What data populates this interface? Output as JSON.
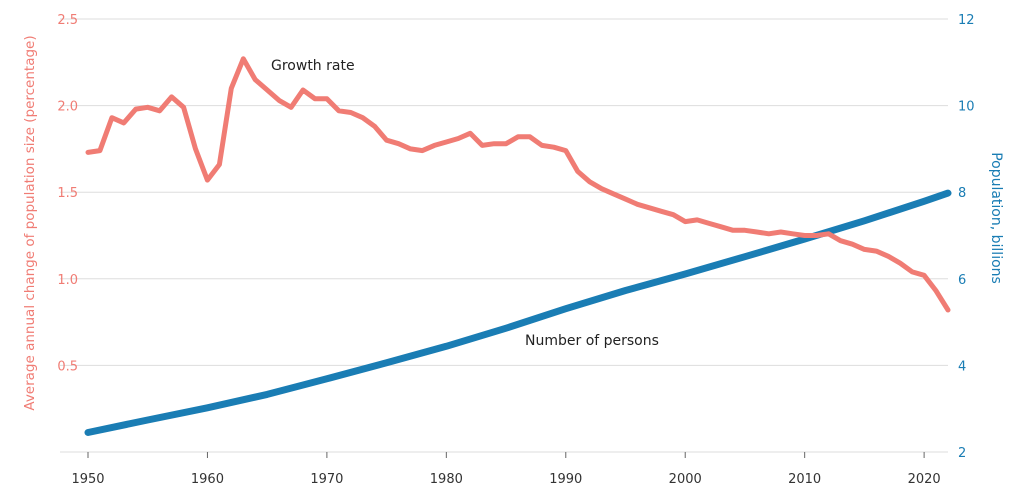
{
  "chart_data": {
    "type": "line",
    "title": "",
    "xlabel": "",
    "ylabel_left": "Average annual change of population size (percentage)",
    "ylabel_right": "Population, billions",
    "x_ticks": [
      "1950",
      "1960",
      "1970",
      "1980",
      "1990",
      "2000",
      "2010",
      "2020"
    ],
    "y_left_ticks": [
      "0.5",
      "1.0",
      "1.5",
      "2.0",
      "2.5"
    ],
    "y_right_ticks": [
      "2",
      "4",
      "6",
      "8",
      "10",
      "12"
    ],
    "xlim": [
      1950,
      2022
    ],
    "ylim_left": [
      0,
      2.5
    ],
    "ylim_right": [
      2,
      12
    ],
    "grid": "horizontal",
    "colors": {
      "growth": "#F07C74",
      "population": "#1A7DB4",
      "grid": "#dddddd"
    },
    "annotations": [
      {
        "text": "Growth rate",
        "series": "growth"
      },
      {
        "text": "Number of persons",
        "series": "population"
      }
    ],
    "series": [
      {
        "key": "growth",
        "axis": "left",
        "x": [
          1950,
          1951,
          1952,
          1953,
          1954,
          1955,
          1956,
          1957,
          1958,
          1959,
          1960,
          1961,
          1962,
          1963,
          1964,
          1965,
          1966,
          1967,
          1968,
          1969,
          1970,
          1971,
          1972,
          1973,
          1974,
          1975,
          1976,
          1977,
          1978,
          1979,
          1980,
          1981,
          1982,
          1983,
          1984,
          1985,
          1986,
          1987,
          1988,
          1989,
          1990,
          1991,
          1992,
          1993,
          1994,
          1995,
          1996,
          1997,
          1998,
          1999,
          2000,
          2001,
          2002,
          2003,
          2004,
          2005,
          2006,
          2007,
          2008,
          2009,
          2010,
          2011,
          2012,
          2013,
          2014,
          2015,
          2016,
          2017,
          2018,
          2019,
          2020,
          2021,
          2022
        ],
        "values": [
          1.73,
          1.74,
          1.93,
          1.9,
          1.98,
          1.99,
          1.97,
          2.05,
          1.99,
          1.75,
          1.57,
          1.66,
          2.1,
          2.27,
          2.15,
          2.09,
          2.03,
          1.99,
          2.09,
          2.04,
          2.04,
          1.97,
          1.96,
          1.93,
          1.88,
          1.8,
          1.78,
          1.75,
          1.74,
          1.77,
          1.79,
          1.81,
          1.84,
          1.77,
          1.78,
          1.78,
          1.82,
          1.82,
          1.77,
          1.76,
          1.74,
          1.62,
          1.56,
          1.52,
          1.49,
          1.46,
          1.43,
          1.41,
          1.39,
          1.37,
          1.33,
          1.34,
          1.32,
          1.3,
          1.28,
          1.28,
          1.27,
          1.26,
          1.27,
          1.26,
          1.25,
          1.25,
          1.26,
          1.22,
          1.2,
          1.17,
          1.16,
          1.13,
          1.09,
          1.04,
          1.02,
          0.93,
          0.82
        ]
      },
      {
        "key": "population",
        "axis": "right",
        "x": [
          1950,
          1955,
          1960,
          1965,
          1970,
          1975,
          1980,
          1985,
          1990,
          1995,
          2000,
          2005,
          2010,
          2015,
          2020,
          2022
        ],
        "values": [
          2.45,
          2.74,
          3.02,
          3.33,
          3.69,
          4.06,
          4.44,
          4.86,
          5.31,
          5.73,
          6.11,
          6.51,
          6.92,
          7.34,
          7.79,
          7.98
        ]
      }
    ]
  }
}
